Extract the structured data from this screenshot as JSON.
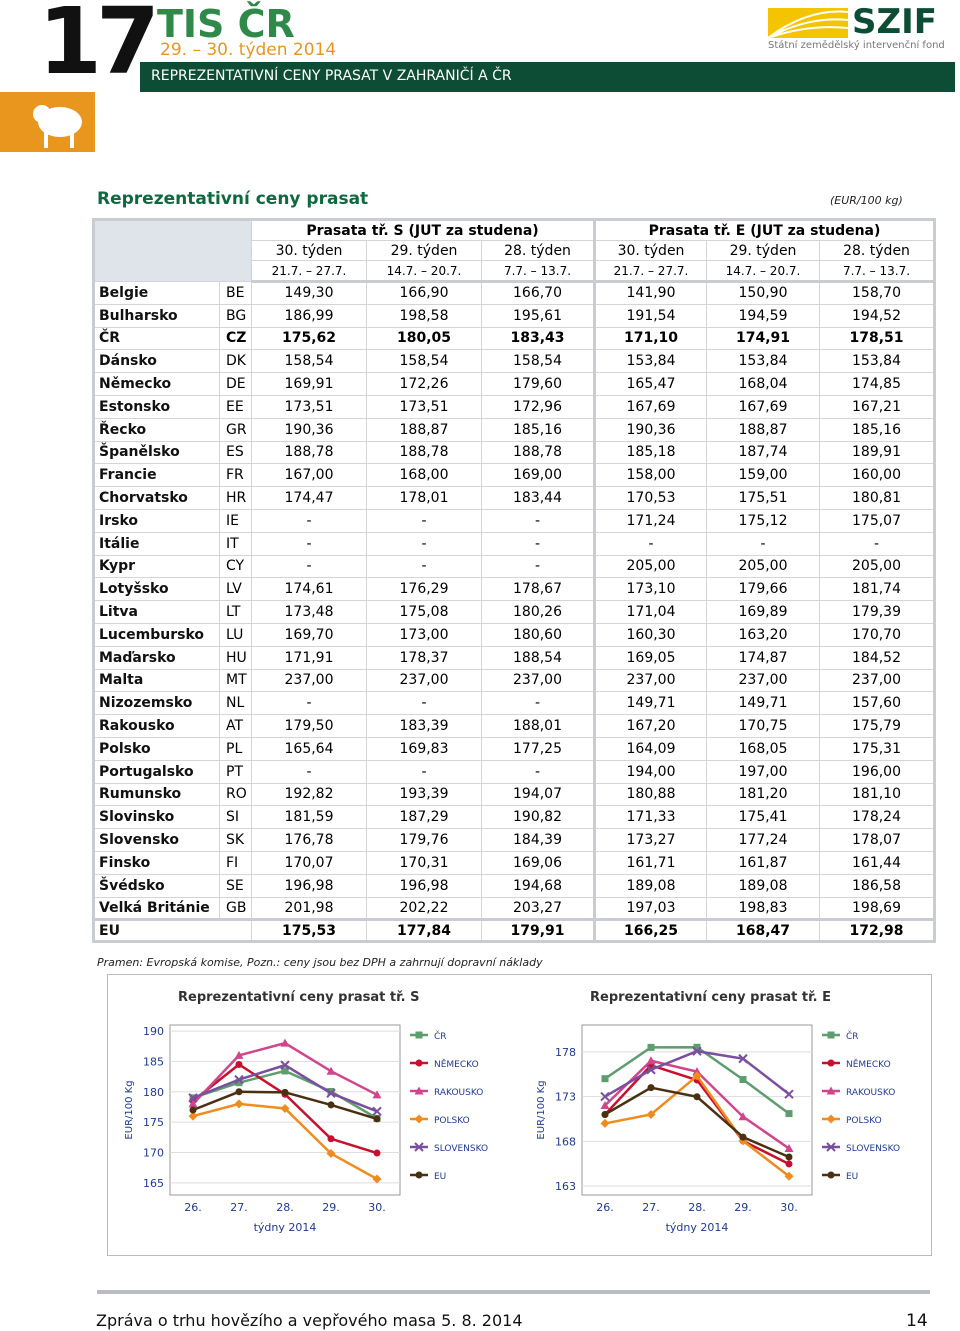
{
  "header": {
    "number": "17",
    "title": "TIS ČR",
    "subtitle": "29. – 30. týden 2014",
    "logo": "SZIF",
    "logo_sub": "Státní zemědělský intervenční fond",
    "banner": "REPREZENTATIVNÍ CENY PRASAT V ZAHRANIČÍ  A  ČR"
  },
  "table": {
    "title": "Reprezentativní ceny prasat",
    "unit": "(EUR/100 kg)",
    "groups": [
      "Prasata  tř. S  (JUT za studena)",
      "Prasata  tř. E  (JUT za studena)"
    ],
    "weeks": [
      "30. týden",
      "29. týden",
      "28. týden",
      "30. týden",
      "29. týden",
      "28. týden"
    ],
    "dates": [
      "21.7. – 27.7.",
      "14.7. – 20.7.",
      "7.7. – 13.7.",
      "21.7. – 27.7.",
      "14.7. – 20.7.",
      "7.7. – 13.7."
    ],
    "rows": [
      {
        "country": "Belgie",
        "code": "BE",
        "values": [
          "149,30",
          "166,90",
          "166,70",
          "141,90",
          "150,90",
          "158,70"
        ]
      },
      {
        "country": "Bulharsko",
        "code": "BG",
        "values": [
          "186,99",
          "198,58",
          "195,61",
          "191,54",
          "194,59",
          "194,52"
        ]
      },
      {
        "country": "ČR",
        "code": "CZ",
        "highlight": true,
        "values": [
          "175,62",
          "180,05",
          "183,43",
          "171,10",
          "174,91",
          "178,51"
        ]
      },
      {
        "country": "Dánsko",
        "code": "DK",
        "values": [
          "158,54",
          "158,54",
          "158,54",
          "153,84",
          "153,84",
          "153,84"
        ]
      },
      {
        "country": "Německo",
        "code": "DE",
        "values": [
          "169,91",
          "172,26",
          "179,60",
          "165,47",
          "168,04",
          "174,85"
        ]
      },
      {
        "country": "Estonsko",
        "code": "EE",
        "values": [
          "173,51",
          "173,51",
          "172,96",
          "167,69",
          "167,69",
          "167,21"
        ]
      },
      {
        "country": "Řecko",
        "code": "GR",
        "values": [
          "190,36",
          "188,87",
          "185,16",
          "190,36",
          "188,87",
          "185,16"
        ]
      },
      {
        "country": "Španělsko",
        "code": "ES",
        "values": [
          "188,78",
          "188,78",
          "188,78",
          "185,18",
          "187,74",
          "189,91"
        ]
      },
      {
        "country": "Francie",
        "code": "FR",
        "values": [
          "167,00",
          "168,00",
          "169,00",
          "158,00",
          "159,00",
          "160,00"
        ]
      },
      {
        "country": "Chorvatsko",
        "code": "HR",
        "values": [
          "174,47",
          "178,01",
          "183,44",
          "170,53",
          "175,51",
          "180,81"
        ]
      },
      {
        "country": "Irsko",
        "code": "IE",
        "values": [
          "-",
          "-",
          "-",
          "171,24",
          "175,12",
          "175,07"
        ]
      },
      {
        "country": "Itálie",
        "code": "IT",
        "values": [
          "-",
          "-",
          "-",
          "-",
          "-",
          "-"
        ]
      },
      {
        "country": "Kypr",
        "code": "CY",
        "values": [
          "-",
          "-",
          "-",
          "205,00",
          "205,00",
          "205,00"
        ]
      },
      {
        "country": "Lotyšsko",
        "code": "LV",
        "values": [
          "174,61",
          "176,29",
          "178,67",
          "173,10",
          "179,66",
          "181,74"
        ]
      },
      {
        "country": "Litva",
        "code": "LT",
        "values": [
          "173,48",
          "175,08",
          "180,26",
          "171,04",
          "169,89",
          "179,39"
        ]
      },
      {
        "country": "Lucembursko",
        "code": "LU",
        "values": [
          "169,70",
          "173,00",
          "180,60",
          "160,30",
          "163,20",
          "170,70"
        ]
      },
      {
        "country": "Maďarsko",
        "code": "HU",
        "values": [
          "171,91",
          "178,37",
          "188,54",
          "169,05",
          "174,87",
          "184,52"
        ]
      },
      {
        "country": "Malta",
        "code": "MT",
        "values": [
          "237,00",
          "237,00",
          "237,00",
          "237,00",
          "237,00",
          "237,00"
        ]
      },
      {
        "country": "Nizozemsko",
        "code": "NL",
        "values": [
          "-",
          "-",
          "-",
          "149,71",
          "149,71",
          "157,60"
        ]
      },
      {
        "country": "Rakousko",
        "code": "AT",
        "values": [
          "179,50",
          "183,39",
          "188,01",
          "167,20",
          "170,75",
          "175,79"
        ]
      },
      {
        "country": "Polsko",
        "code": "PL",
        "values": [
          "165,64",
          "169,83",
          "177,25",
          "164,09",
          "168,05",
          "175,31"
        ]
      },
      {
        "country": "Portugalsko",
        "code": "PT",
        "values": [
          "-",
          "-",
          "-",
          "194,00",
          "197,00",
          "196,00"
        ]
      },
      {
        "country": "Rumunsko",
        "code": "RO",
        "values": [
          "192,82",
          "193,39",
          "194,07",
          "180,88",
          "181,20",
          "181,10"
        ]
      },
      {
        "country": "Slovinsko",
        "code": "SI",
        "values": [
          "181,59",
          "187,29",
          "190,82",
          "171,33",
          "175,41",
          "178,24"
        ]
      },
      {
        "country": "Slovensko",
        "code": "SK",
        "values": [
          "176,78",
          "179,76",
          "184,39",
          "173,27",
          "177,24",
          "178,07"
        ]
      },
      {
        "country": "Finsko",
        "code": "FI",
        "values": [
          "170,07",
          "170,31",
          "169,06",
          "161,71",
          "161,87",
          "161,44"
        ]
      },
      {
        "country": "Švédsko",
        "code": "SE",
        "values": [
          "196,98",
          "196,98",
          "194,68",
          "189,08",
          "189,08",
          "186,58"
        ]
      },
      {
        "country": "Velká Británie",
        "code": "GB",
        "values": [
          "201,98",
          "202,22",
          "203,27",
          "197,03",
          "198,83",
          "198,69"
        ]
      }
    ],
    "total": {
      "country": "EU",
      "values": [
        "175,53",
        "177,84",
        "179,91",
        "166,25",
        "168,47",
        "172,98"
      ]
    },
    "note": "Pramen: Evropská komise, Pozn.:  ceny jsou bez DPH a zahrnují dopravní náklady"
  },
  "chart_data": [
    {
      "type": "line",
      "title": "Reprezentativní ceny prasat tř. S",
      "y_label": "EUR/100 Kg",
      "x_label": "týdny 2014",
      "categories": [
        "26.",
        "27.",
        "28.",
        "29.",
        "30."
      ],
      "ylim": [
        163,
        191
      ],
      "yticks": [
        165,
        170,
        175,
        180,
        185,
        190
      ],
      "grid": true,
      "series": [
        {
          "name": "ČR",
          "color": "#5e9e6e",
          "marker": "square",
          "values": [
            179,
            181.5,
            183.43,
            180.05,
            175.62
          ]
        },
        {
          "name": "NĚMECKO",
          "color": "#c8102e",
          "marker": "circle",
          "values": [
            178.5,
            184.5,
            179.6,
            172.26,
            169.91
          ]
        },
        {
          "name": "RAKOUSKO",
          "color": "#d0458c",
          "marker": "triangle",
          "values": [
            178,
            186,
            188.01,
            183.39,
            179.5
          ]
        },
        {
          "name": "POLSKO",
          "color": "#f08c1e",
          "marker": "diamond",
          "values": [
            176,
            178,
            177.25,
            169.83,
            165.64
          ]
        },
        {
          "name": "SLOVENSKO",
          "color": "#7a4fa0",
          "marker": "cross",
          "values": [
            179,
            182,
            184.39,
            179.76,
            176.78
          ]
        },
        {
          "name": "EU",
          "color": "#4a3010",
          "marker": "circle",
          "values": [
            177,
            180,
            179.91,
            177.84,
            175.53
          ]
        }
      ]
    },
    {
      "type": "line",
      "title": "Reprezentativní ceny prasat tř. E",
      "y_label": "EUR/100 Kg",
      "x_label": "týdny 2014",
      "categories": [
        "26.",
        "27.",
        "28.",
        "29.",
        "30."
      ],
      "ylim": [
        162,
        181
      ],
      "yticks": [
        163,
        168,
        173,
        178
      ],
      "grid": true,
      "series": [
        {
          "name": "ČR",
          "color": "#5e9e6e",
          "marker": "square",
          "values": [
            175,
            178.5,
            178.51,
            174.91,
            171.1
          ]
        },
        {
          "name": "NĚMECKO",
          "color": "#c8102e",
          "marker": "circle",
          "values": [
            171,
            176.5,
            174.85,
            168.04,
            165.47
          ]
        },
        {
          "name": "RAKOUSKO",
          "color": "#d0458c",
          "marker": "triangle",
          "values": [
            172,
            177,
            175.79,
            170.75,
            167.2
          ]
        },
        {
          "name": "POLSKO",
          "color": "#f08c1e",
          "marker": "diamond",
          "values": [
            170,
            171,
            175.31,
            168.05,
            164.09
          ]
        },
        {
          "name": "SLOVENSKO",
          "color": "#7a4fa0",
          "marker": "cross",
          "values": [
            173,
            176,
            178.07,
            177.24,
            173.27
          ]
        },
        {
          "name": "EU",
          "color": "#4a3010",
          "marker": "circle",
          "values": [
            171,
            174,
            172.98,
            168.47,
            166.25
          ]
        }
      ]
    }
  ],
  "footer": {
    "text": "Zpráva o trhu hovězího a vepřového masa  5. 8. 2014",
    "page": "14"
  }
}
